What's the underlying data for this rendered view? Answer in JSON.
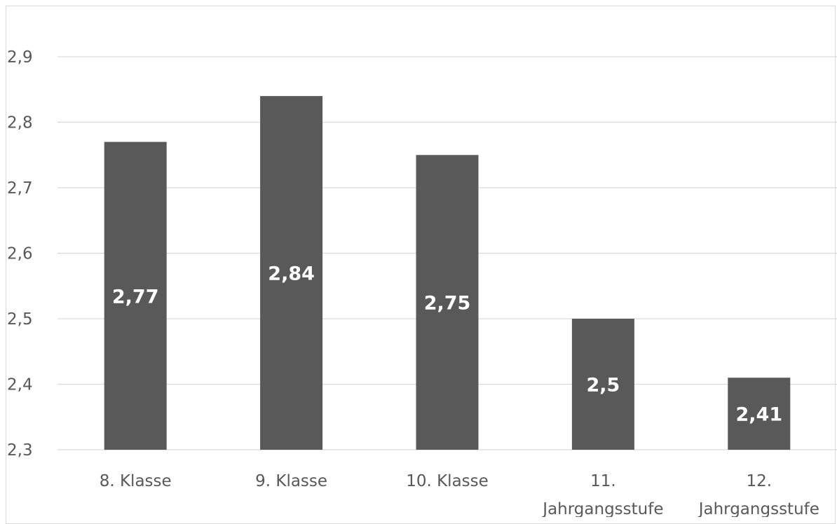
{
  "chart_data": {
    "type": "bar",
    "categories": [
      [
        "8. Klasse"
      ],
      [
        "9. Klasse"
      ],
      [
        "10. Klasse"
      ],
      [
        "11.",
        "Jahrgangsstufe"
      ],
      [
        "12.",
        "Jahrgangsstufe"
      ]
    ],
    "values": [
      2.77,
      2.84,
      2.75,
      2.5,
      2.41
    ],
    "data_labels": [
      "2,77",
      "2,84",
      "2,75",
      "2,5",
      "2,41"
    ],
    "yticks": [
      2.3,
      2.4,
      2.5,
      2.6,
      2.7,
      2.8,
      2.9
    ],
    "ytick_labels": [
      "2,3",
      "2,4",
      "2,5",
      "2,6",
      "2,7",
      "2,8",
      "2,9"
    ],
    "ylim": [
      2.3,
      2.9
    ],
    "grid": true,
    "legend": "none",
    "bar_color": "#595959",
    "grid_color": "#d9d9d9",
    "title": "",
    "xlabel": "",
    "ylabel": ""
  }
}
